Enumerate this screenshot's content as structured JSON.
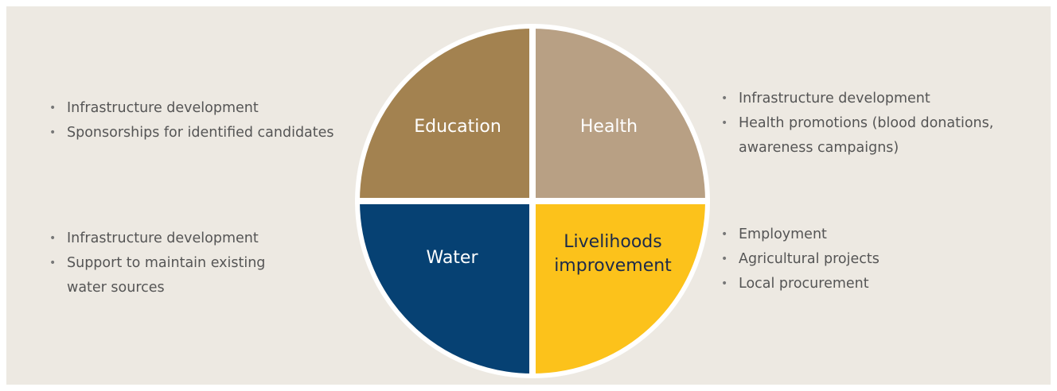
{
  "quadrants": [
    {
      "label": "Education",
      "bullets": [
        "Infrastructure development",
        "Sponsorships for identified candidates"
      ]
    },
    {
      "label": "Health",
      "bullets": [
        "Infrastructure development",
        "Health promotions (blood donations, awareness campaigns)"
      ]
    },
    {
      "label": "Water",
      "bullets": [
        "Infrastructure development",
        "Support to maintain existing water sources"
      ]
    },
    {
      "label": "Livelihoods improvement",
      "bullets": [
        "Employment",
        "Agricultural projects",
        "Local procurement"
      ]
    }
  ]
}
